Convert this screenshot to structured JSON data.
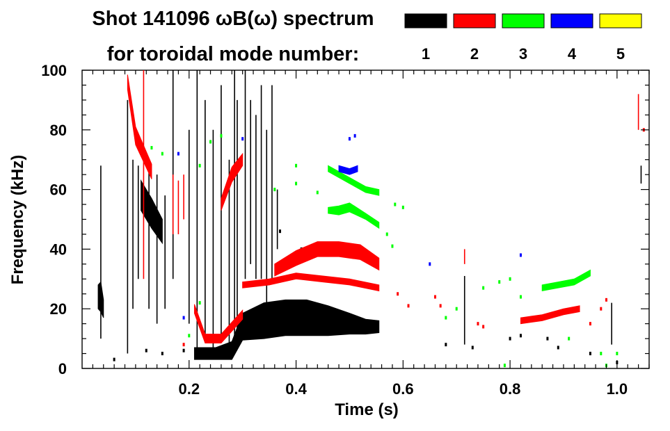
{
  "chart_data": {
    "type": "scatter",
    "title_line1": "Shot 141096 ωB(ω) spectrum",
    "title_line2": "for toroidal mode number:",
    "xlabel": "Time (s)",
    "ylabel": "Frequency (kHz)",
    "xlim": [
      0.0,
      1.06
    ],
    "ylim": [
      0,
      100
    ],
    "x_ticks": [
      0.2,
      0.4,
      0.6,
      0.8,
      1.0
    ],
    "x_tick_labels": [
      "0.2",
      "0.4",
      "0.6",
      "0.8",
      "1.0"
    ],
    "y_ticks": [
      0,
      20,
      40,
      60,
      80,
      100
    ],
    "y_tick_labels": [
      "0",
      "20",
      "40",
      "60",
      "80",
      "100"
    ],
    "legend": [
      {
        "label": "1",
        "color": "#000000"
      },
      {
        "label": "2",
        "color": "#ff0000"
      },
      {
        "label": "3",
        "color": "#00ff00"
      },
      {
        "label": "4",
        "color": "#0000ff"
      },
      {
        "label": "5",
        "color": "#ffff00"
      }
    ],
    "legend_placement": "top-right",
    "series": [
      {
        "name": "1",
        "color": "#000000",
        "bands": [
          {
            "x": [
              0.21,
              0.25,
              0.28,
              0.3,
              0.34,
              0.38,
              0.42,
              0.46,
              0.5,
              0.53,
              0.555
            ],
            "y": [
              5,
              5,
              6,
              14,
              16,
              17,
              17,
              16,
              15,
              14,
              14
            ],
            "h": [
              4,
              4,
              6,
              9,
              12,
              12,
              12,
              10,
              7,
              5,
              4
            ]
          },
          {
            "x": [
              0.03,
              0.035,
              0.04
            ],
            "y": [
              24,
              24,
              20
            ],
            "h": [
              8,
              10,
              6
            ]
          },
          {
            "x": [
              0.11,
              0.13,
              0.15
            ],
            "y": [
              58,
              52,
              46
            ],
            "h": [
              10,
              10,
              8
            ]
          }
        ],
        "spikes": [
          {
            "x": 0.035,
            "y0": 10,
            "y1": 68
          },
          {
            "x": 0.085,
            "y0": 5,
            "y1": 90
          },
          {
            "x": 0.095,
            "y0": 20,
            "y1": 70
          },
          {
            "x": 0.105,
            "y0": 30,
            "y1": 68
          },
          {
            "x": 0.125,
            "y0": 20,
            "y1": 70
          },
          {
            "x": 0.14,
            "y0": 15,
            "y1": 65
          },
          {
            "x": 0.155,
            "y0": 20,
            "y1": 58
          },
          {
            "x": 0.17,
            "y0": 30,
            "y1": 100
          },
          {
            "x": 0.2,
            "y0": 15,
            "y1": 80
          },
          {
            "x": 0.215,
            "y0": 5,
            "y1": 100
          },
          {
            "x": 0.23,
            "y0": 10,
            "y1": 90
          },
          {
            "x": 0.245,
            "y0": 5,
            "y1": 80
          },
          {
            "x": 0.26,
            "y0": 10,
            "y1": 95
          },
          {
            "x": 0.275,
            "y0": 5,
            "y1": 70
          },
          {
            "x": 0.285,
            "y0": 5,
            "y1": 100
          },
          {
            "x": 0.29,
            "y0": 10,
            "y1": 90
          },
          {
            "x": 0.305,
            "y0": 30,
            "y1": 100
          },
          {
            "x": 0.315,
            "y0": 35,
            "y1": 90
          },
          {
            "x": 0.325,
            "y0": 30,
            "y1": 85
          },
          {
            "x": 0.335,
            "y0": 30,
            "y1": 95
          },
          {
            "x": 0.345,
            "y0": 20,
            "y1": 80
          },
          {
            "x": 0.355,
            "y0": 30,
            "y1": 95
          },
          {
            "x": 0.365,
            "y0": 40,
            "y1": 60
          },
          {
            "x": 0.715,
            "y0": 8,
            "y1": 31
          },
          {
            "x": 0.99,
            "y0": 8,
            "y1": 22
          },
          {
            "x": 1.045,
            "y0": 62,
            "y1": 68
          }
        ],
        "points": [
          [
            0.06,
            3
          ],
          [
            0.12,
            6
          ],
          [
            0.15,
            5
          ],
          [
            0.19,
            6
          ],
          [
            0.36,
            17
          ],
          [
            0.37,
            46
          ],
          [
            0.41,
            40
          ],
          [
            0.44,
            40
          ],
          [
            0.47,
            30
          ],
          [
            0.68,
            8
          ],
          [
            0.73,
            7
          ],
          [
            0.8,
            10
          ],
          [
            0.82,
            11
          ],
          [
            0.87,
            10
          ],
          [
            0.89,
            7
          ],
          [
            1.0,
            2
          ],
          [
            0.95,
            5
          ]
        ]
      },
      {
        "name": "2",
        "color": "#ff0000",
        "bands": [
          {
            "x": [
              0.21,
              0.23,
              0.26,
              0.28,
              0.3
            ],
            "y": [
              20,
              10,
              10,
              14,
              18
            ],
            "h": [
              3,
              3,
              3,
              3,
              3
            ]
          },
          {
            "x": [
              0.26,
              0.28,
              0.3
            ],
            "y": [
              55,
              65,
              70
            ],
            "h": [
              4,
              5,
              4
            ]
          },
          {
            "x": [
              0.3,
              0.35,
              0.4,
              0.45,
              0.5,
              0.555
            ],
            "y": [
              28,
              29,
              31,
              30,
              29,
              27
            ],
            "h": [
              2,
              2,
              2,
              2,
              2,
              2
            ]
          },
          {
            "x": [
              0.36,
              0.4,
              0.44,
              0.48,
              0.52,
              0.555
            ],
            "y": [
              33,
              37,
              40,
              40,
              39,
              35
            ],
            "h": [
              4,
              5,
              5,
              5,
              5,
              4
            ]
          },
          {
            "x": [
              0.085,
              0.1,
              0.13
            ],
            "y": [
              96,
              78,
              66
            ],
            "h": [
              5,
              6,
              5
            ]
          },
          {
            "x": [
              0.82,
              0.86,
              0.9,
              0.93
            ],
            "y": [
              16,
              17,
              19,
              20
            ],
            "h": [
              2,
              2,
              2,
              2
            ]
          }
        ],
        "spikes": [
          {
            "x": 0.17,
            "y0": 45,
            "y1": 65
          },
          {
            "x": 0.18,
            "y0": 45,
            "y1": 63
          },
          {
            "x": 0.19,
            "y0": 50,
            "y1": 65
          },
          {
            "x": 0.115,
            "y0": 30,
            "y1": 100
          },
          {
            "x": 0.715,
            "y0": 35,
            "y1": 40
          },
          {
            "x": 1.04,
            "y0": 80,
            "y1": 92
          }
        ],
        "points": [
          [
            0.75,
            14
          ],
          [
            0.74,
            15
          ],
          [
            0.95,
            15
          ],
          [
            0.97,
            20
          ],
          [
            0.98,
            23
          ],
          [
            0.67,
            21
          ],
          [
            0.66,
            24
          ],
          [
            0.19,
            8
          ],
          [
            0.59,
            25
          ],
          [
            0.61,
            21
          ],
          [
            1.05,
            80
          ]
        ]
      },
      {
        "name": "3",
        "color": "#00ff00",
        "bands": [
          {
            "x": [
              0.46,
              0.48,
              0.5,
              0.53,
              0.555
            ],
            "y": [
              67,
              65,
              63,
              60,
              59
            ],
            "h": [
              2,
              2,
              2,
              2,
              2
            ]
          },
          {
            "x": [
              0.46,
              0.48,
              0.5,
              0.53,
              0.555
            ],
            "y": [
              53,
              53,
              54,
              51,
              48
            ],
            "h": [
              2,
              3,
              3,
              2,
              2
            ]
          },
          {
            "x": [
              0.86,
              0.89,
              0.92,
              0.95
            ],
            "y": [
              27,
              28,
              29,
              32
            ],
            "h": [
              2,
              2,
              2,
              2
            ]
          }
        ],
        "spikes": [],
        "points": [
          [
            0.585,
            55
          ],
          [
            0.6,
            54
          ],
          [
            0.57,
            45
          ],
          [
            0.58,
            41
          ],
          [
            0.24,
            76
          ],
          [
            0.26,
            78
          ],
          [
            0.22,
            68
          ],
          [
            0.15,
            72
          ],
          [
            0.13,
            74
          ],
          [
            0.36,
            60
          ],
          [
            0.4,
            62
          ],
          [
            0.44,
            59
          ],
          [
            0.75,
            27
          ],
          [
            0.78,
            29
          ],
          [
            0.8,
            30
          ],
          [
            0.82,
            24
          ],
          [
            0.7,
            20
          ],
          [
            0.68,
            17
          ],
          [
            0.91,
            10
          ],
          [
            0.97,
            5
          ],
          [
            0.98,
            1
          ],
          [
            0.79,
            1
          ],
          [
            1.0,
            5
          ],
          [
            0.2,
            11
          ],
          [
            0.22,
            22
          ],
          [
            0.4,
            68
          ]
        ]
      },
      {
        "name": "4",
        "color": "#0000ff",
        "bands": [
          {
            "x": [
              0.48,
              0.5,
              0.515
            ],
            "y": [
              67,
              66,
              67
            ],
            "h": [
              2,
              2,
              2
            ]
          }
        ],
        "spikes": [],
        "points": [
          [
            0.5,
            77
          ],
          [
            0.51,
            78
          ],
          [
            0.3,
            77
          ],
          [
            0.18,
            72
          ],
          [
            0.65,
            35
          ],
          [
            0.82,
            38
          ],
          [
            0.19,
            17
          ]
        ]
      },
      {
        "name": "5",
        "color": "#ffff00",
        "bands": [],
        "spikes": [],
        "points": []
      }
    ]
  }
}
